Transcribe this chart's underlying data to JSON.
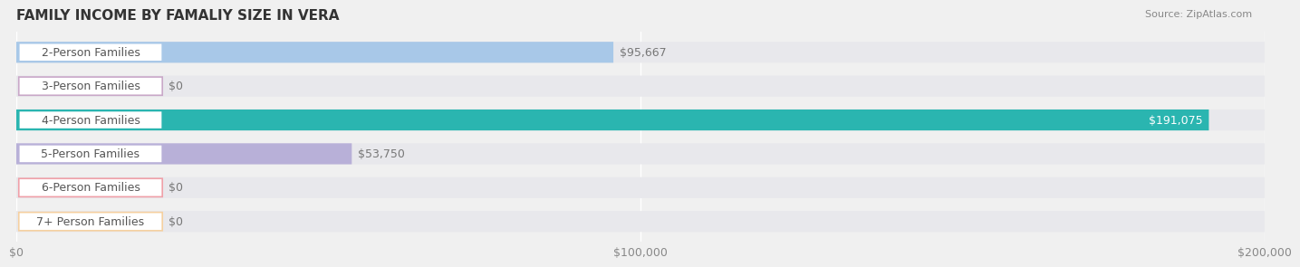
{
  "title": "FAMILY INCOME BY FAMALIY SIZE IN VERA",
  "source": "Source: ZipAtlas.com",
  "categories": [
    "2-Person Families",
    "3-Person Families",
    "4-Person Families",
    "5-Person Families",
    "6-Person Families",
    "7+ Person Families"
  ],
  "values": [
    95667,
    0,
    191075,
    53750,
    0,
    0
  ],
  "bar_colors": [
    "#a8c8e8",
    "#c9a8c8",
    "#2ab5b0",
    "#b8b0d8",
    "#f0a0a8",
    "#f5d0a0"
  ],
  "label_colors": [
    "#a8c8e8",
    "#c9a8c8",
    "#2ab5b0",
    "#b8b0d8",
    "#f0a0a8",
    "#f5d0a0"
  ],
  "xlim": [
    0,
    200000
  ],
  "xticks": [
    0,
    100000,
    200000
  ],
  "xtick_labels": [
    "$0",
    "$100,000",
    "$200,000"
  ],
  "background_color": "#f0f0f0",
  "bar_background": "#e8e8ec",
  "title_fontsize": 11,
  "tick_fontsize": 9,
  "label_fontsize": 9,
  "value_fontsize": 9
}
